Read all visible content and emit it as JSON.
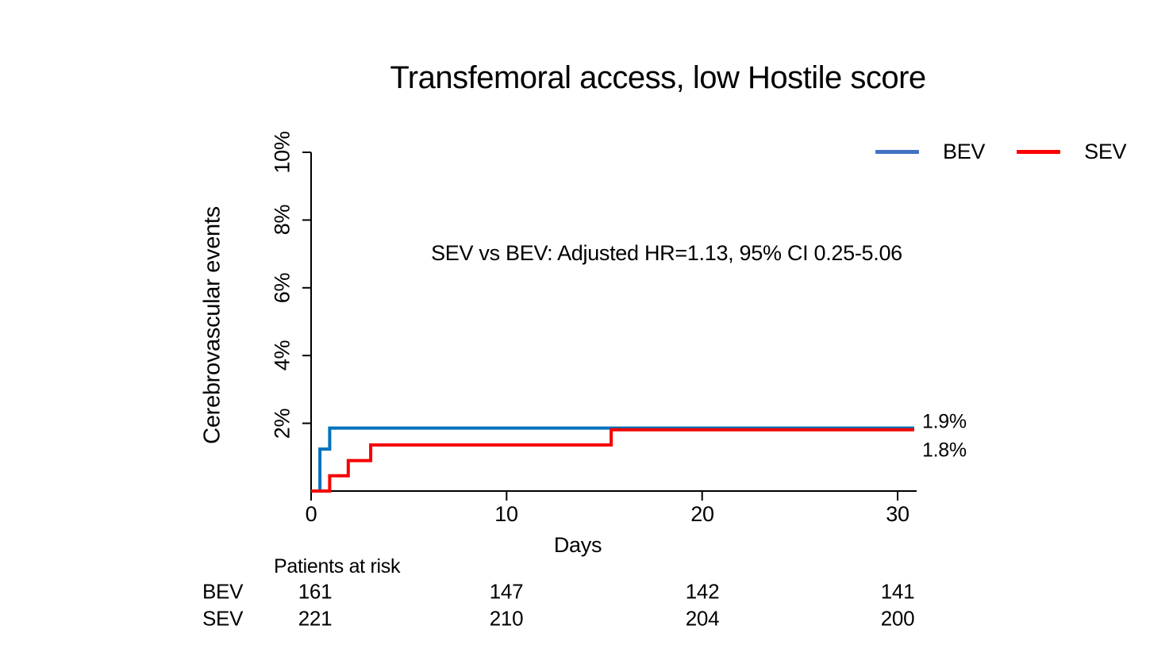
{
  "title": "Transfemoral access, low Hostile score",
  "annotation": "SEV vs BEV: Adjusted HR=1.13, 95% CI 0.25-5.06",
  "legend": {
    "items": [
      {
        "label": "BEV",
        "color": "#4472C4"
      },
      {
        "label": "SEV",
        "color": "#FF0000"
      }
    ]
  },
  "end_labels": {
    "bev": "1.9%",
    "sev": "1.8%"
  },
  "chart_data": {
    "type": "line",
    "subtype": "kaplan-meier-cumulative-incidence-step",
    "title": "Transfemoral access, low Hostile score",
    "xlabel": "Days",
    "ylabel": "Cerebrovascular events",
    "xlim": [
      0,
      31
    ],
    "ylim": [
      0,
      10
    ],
    "xticks": [
      0,
      10,
      20,
      30
    ],
    "yticks": [
      2,
      4,
      6,
      8,
      10
    ],
    "ytick_labels": [
      "2%",
      "4%",
      "6%",
      "8%",
      "10%"
    ],
    "grid": false,
    "legend_position": "top-right",
    "annotation": "SEV vs BEV: Adjusted HR=1.13, 95% CI 0.25-5.06",
    "series": [
      {
        "name": "BEV",
        "color": "#0072BC",
        "final_value_label": "1.9%",
        "steps_x_days_y_pct": [
          [
            0,
            0
          ],
          [
            0.45,
            1.24
          ],
          [
            0.95,
            1.86
          ],
          [
            30.85,
            1.86
          ]
        ]
      },
      {
        "name": "SEV",
        "color": "#F40000",
        "final_value_label": "1.8%",
        "steps_x_days_y_pct": [
          [
            0,
            0
          ],
          [
            0.95,
            0.45
          ],
          [
            1.9,
            0.9
          ],
          [
            3.05,
            1.36
          ],
          [
            15.35,
            1.81
          ],
          [
            30.85,
            1.81
          ]
        ]
      }
    ],
    "risk_table": {
      "title": "Patients at risk",
      "time_points": [
        0,
        10,
        20,
        30
      ],
      "rows": [
        {
          "label": "BEV",
          "counts": [
            161,
            147,
            142,
            141
          ]
        },
        {
          "label": "SEV",
          "counts": [
            221,
            210,
            204,
            200
          ]
        }
      ]
    }
  }
}
